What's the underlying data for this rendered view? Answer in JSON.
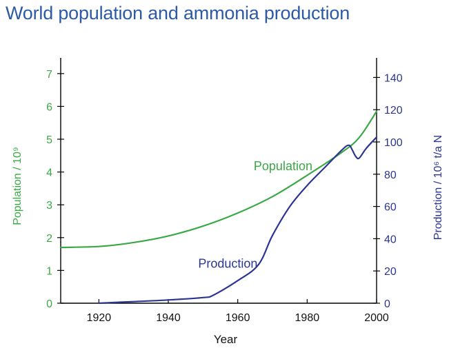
{
  "title": "World population and ammonia production",
  "colors": {
    "title": "#2d5aa6",
    "population": "#3aa845",
    "production": "#2c3592",
    "axis_text": "#111111",
    "axis": "#000000"
  },
  "chart_data": {
    "type": "line",
    "title": "World population and ammonia production",
    "xlabel": "Year",
    "xlim": [
      1909,
      2000
    ],
    "xticks": [
      1920,
      1940,
      1960,
      1980,
      2000
    ],
    "y_left": {
      "label": "Population  / 10⁹",
      "lim": [
        0,
        7
      ],
      "ticks": [
        0,
        1,
        2,
        3,
        4,
        5,
        6,
        7
      ]
    },
    "y_right": {
      "label": "Production  / 10⁶ t/a N",
      "lim": [
        0,
        145
      ],
      "ticks": [
        0,
        20,
        40,
        60,
        80,
        100,
        120,
        140
      ]
    },
    "series": [
      {
        "name": "Population",
        "axis": "left",
        "color": "#3aa845",
        "points": [
          [
            1909,
            1.7
          ],
          [
            1920,
            1.73
          ],
          [
            1930,
            1.85
          ],
          [
            1940,
            2.05
          ],
          [
            1950,
            2.35
          ],
          [
            1960,
            2.75
          ],
          [
            1970,
            3.25
          ],
          [
            1980,
            3.9
          ],
          [
            1990,
            4.6
          ],
          [
            1995,
            5.05
          ],
          [
            2000,
            5.85
          ]
        ]
      },
      {
        "name": "Production",
        "axis": "right",
        "color": "#2c3592",
        "points": [
          [
            1920,
            0
          ],
          [
            1930,
            1
          ],
          [
            1940,
            2
          ],
          [
            1950,
            3.5
          ],
          [
            1953,
            5
          ],
          [
            1960,
            14
          ],
          [
            1966,
            24
          ],
          [
            1970,
            42
          ],
          [
            1975,
            60
          ],
          [
            1980,
            73
          ],
          [
            1985,
            84
          ],
          [
            1990,
            95
          ],
          [
            1992,
            98
          ],
          [
            1993,
            95
          ],
          [
            1994,
            91
          ],
          [
            1995,
            90
          ],
          [
            1997,
            96
          ],
          [
            2000,
            103
          ]
        ]
      }
    ],
    "annotations": [
      {
        "text": "Population",
        "x": 1967,
        "axis": "left",
        "y": 4.05
      },
      {
        "text": "Production",
        "x": 1951,
        "axis": "right",
        "y": 22
      }
    ]
  }
}
